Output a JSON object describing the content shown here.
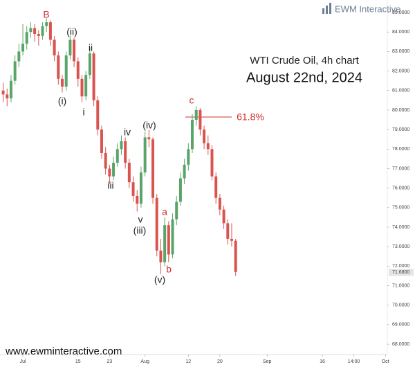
{
  "chart_data": {
    "type": "candlestick",
    "title": "WTI Crude Oil, 4h chart",
    "subtitle": "August 22nd, 2024",
    "brand": "EWM Interactive",
    "footer": "www.ewminteractive.com",
    "up_color": "#5aa469",
    "down_color": "#d9534f",
    "x": [
      -5,
      -4,
      -3,
      -2,
      -1,
      0,
      1,
      2,
      3,
      4,
      5,
      6,
      7,
      8,
      9,
      10,
      11,
      12,
      13,
      14,
      15,
      16,
      17,
      18,
      19,
      20,
      21,
      22,
      23,
      24,
      25,
      26,
      27,
      28,
      29,
      30,
      31,
      32,
      33,
      34,
      35,
      36,
      37,
      38,
      39,
      40,
      41,
      42,
      43,
      44,
      45,
      46,
      47,
      48,
      49,
      50,
      51,
      52,
      53,
      54
    ],
    "open": [
      81.0,
      80.8,
      80.6,
      81.5,
      82.5,
      83.0,
      83.4,
      84.0,
      84.2,
      83.9,
      83.8,
      84.3,
      84.5,
      83.6,
      82.8,
      81.6,
      81.2,
      82.8,
      83.6,
      82.5,
      81.6,
      80.7,
      81.8,
      82.9,
      80.5,
      79.0,
      77.8,
      77.0,
      76.6,
      77.3,
      78.0,
      78.4,
      77.3,
      76.3,
      75.6,
      75.2,
      76.8,
      78.6,
      78.5,
      75.5,
      72.8,
      72.2,
      74.1,
      72.6,
      74.4,
      75.3,
      76.5,
      77.2,
      78.0,
      79.5,
      80.0,
      79.0,
      78.3,
      78.0,
      76.6,
      75.5,
      74.9,
      74.2,
      73.4,
      73.3
    ],
    "high": [
      81.4,
      81.1,
      81.8,
      82.8,
      83.4,
      84.4,
      84.3,
      84.5,
      84.4,
      84.1,
      84.5,
      84.7,
      84.6,
      83.8,
      83.0,
      81.8,
      83.0,
      83.8,
      83.7,
      82.7,
      81.8,
      82.0,
      83.2,
      83.0,
      80.7,
      79.2,
      78.1,
      77.2,
      77.6,
      78.3,
      78.7,
      78.6,
      77.5,
      76.6,
      75.9,
      77.1,
      78.9,
      79.0,
      78.6,
      75.7,
      73.4,
      74.5,
      74.3,
      74.7,
      75.6,
      76.8,
      77.5,
      78.3,
      79.8,
      80.2,
      80.1,
      79.2,
      78.7,
      78.2,
      76.8,
      75.7,
      75.1,
      74.4,
      74.2,
      73.4
    ],
    "low": [
      80.4,
      80.2,
      80.4,
      81.3,
      82.2,
      82.8,
      83.1,
      83.7,
      83.5,
      83.3,
      83.6,
      84.0,
      83.3,
      82.5,
      81.3,
      80.9,
      81.0,
      82.6,
      82.2,
      81.2,
      80.4,
      80.5,
      81.6,
      80.2,
      78.7,
      77.5,
      76.7,
      76.2,
      76.4,
      77.1,
      77.7,
      77.0,
      76.0,
      75.3,
      74.8,
      75.0,
      76.6,
      78.1,
      75.2,
      72.5,
      71.6,
      72.0,
      72.2,
      72.4,
      74.1,
      75.1,
      76.2,
      76.9,
      77.8,
      79.2,
      78.7,
      78.0,
      77.7,
      76.4,
      75.2,
      74.6,
      73.9,
      73.1,
      73.0,
      71.5
    ],
    "close": [
      80.8,
      80.6,
      81.5,
      82.5,
      83.0,
      83.4,
      84.0,
      84.2,
      83.9,
      83.8,
      84.3,
      84.5,
      83.6,
      82.8,
      81.6,
      81.2,
      82.8,
      83.6,
      82.5,
      81.6,
      80.7,
      81.8,
      82.9,
      80.5,
      79.0,
      77.8,
      77.0,
      76.6,
      77.3,
      78.0,
      78.4,
      77.3,
      76.3,
      75.6,
      75.2,
      76.8,
      78.6,
      78.5,
      75.5,
      72.8,
      72.2,
      74.1,
      72.6,
      74.4,
      75.3,
      76.5,
      77.2,
      78.0,
      79.5,
      80.0,
      79.0,
      78.3,
      78.0,
      76.6,
      75.5,
      74.9,
      74.2,
      73.4,
      73.3,
      71.7
    ],
    "xlim": [
      -5.8,
      92.5
    ],
    "xticks": [
      {
        "value": 0,
        "label": "Jul"
      },
      {
        "value": 14,
        "label": "15"
      },
      {
        "value": 22,
        "label": "23"
      },
      {
        "value": 31,
        "label": "Aug"
      },
      {
        "value": 42,
        "label": "12"
      },
      {
        "value": 50,
        "label": "20"
      },
      {
        "value": 62,
        "label": "Sep"
      },
      {
        "value": 76,
        "label": "16"
      },
      {
        "value": 84,
        "label": "14:00"
      },
      {
        "value": 92,
        "label": "Oct"
      }
    ],
    "ylim": [
      67.47,
      85.64
    ],
    "yticks": [
      {
        "value": 68,
        "label": "68.0000"
      },
      {
        "value": 69,
        "label": "69.0000"
      },
      {
        "value": 70,
        "label": "70.0000"
      },
      {
        "value": 71,
        "label": "71.0000"
      },
      {
        "value": 72,
        "label": "72.0000"
      },
      {
        "value": 73,
        "label": "73.0000"
      },
      {
        "value": 74,
        "label": "74.0000"
      },
      {
        "value": 75,
        "label": "75.0000"
      },
      {
        "value": 76,
        "label": "76.0000"
      },
      {
        "value": 77,
        "label": "77.0000"
      },
      {
        "value": 78,
        "label": "78.0000"
      },
      {
        "value": 79,
        "label": "79.0000"
      },
      {
        "value": 80,
        "label": "80.0000"
      },
      {
        "value": 81,
        "label": "81.0000"
      },
      {
        "value": 82,
        "label": "82.0000"
      },
      {
        "value": 83,
        "label": "83.0000"
      },
      {
        "value": 84,
        "label": "84.0000"
      },
      {
        "value": 85,
        "label": "85.0000"
      }
    ],
    "last_price": {
      "value": 71.68,
      "label": "71.6800"
    },
    "annotations": [
      {
        "text": "B",
        "color": "#d03030"
      },
      {
        "text": "(ii)",
        "color": "#222222"
      },
      {
        "text": "ii",
        "color": "#222222"
      },
      {
        "text": "(i)",
        "color": "#222222"
      },
      {
        "text": "i",
        "color": "#222222"
      },
      {
        "text": "iv",
        "color": "#222222"
      },
      {
        "text": "(iv)",
        "color": "#222222"
      },
      {
        "text": "iii",
        "color": "#222222"
      },
      {
        "text": "v",
        "color": "#222222"
      },
      {
        "text": "(iii)",
        "color": "#222222"
      },
      {
        "text": "a",
        "color": "#d03030"
      },
      {
        "text": "b",
        "color": "#d03030"
      },
      {
        "text": "(v)",
        "color": "#222222"
      },
      {
        "text": "c",
        "color": "#d03030"
      },
      {
        "text": "61.8%",
        "color": "#d03030"
      }
    ]
  }
}
